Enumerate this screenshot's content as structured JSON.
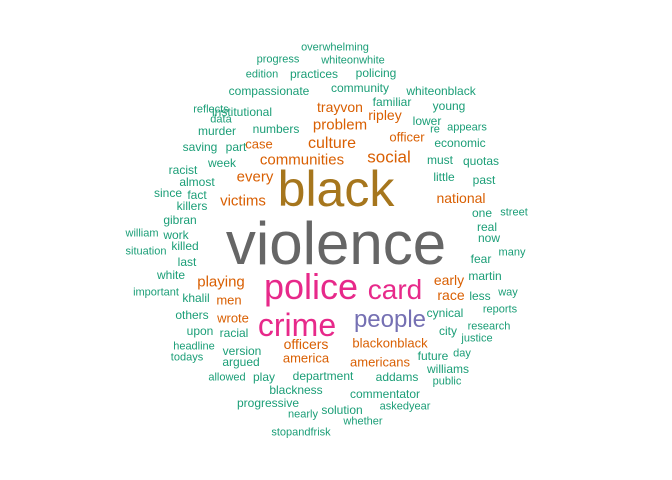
{
  "palette": {
    "teal": "#1b9e77",
    "orange": "#d95f02",
    "purple": "#7570b3",
    "magenta": "#e7298a",
    "gold": "#a6761d",
    "gray": "#666666"
  },
  "words": [
    {
      "text": "violence",
      "color": "gray"
    },
    {
      "text": "black",
      "color": "gold"
    },
    {
      "text": "police",
      "color": "magenta"
    },
    {
      "text": "crime",
      "color": "magenta"
    },
    {
      "text": "card",
      "color": "magenta"
    },
    {
      "text": "people",
      "color": "purple"
    },
    {
      "text": "social",
      "color": "orange"
    },
    {
      "text": "culture",
      "color": "orange"
    },
    {
      "text": "communities",
      "color": "orange"
    },
    {
      "text": "victims",
      "color": "orange"
    },
    {
      "text": "every",
      "color": "orange"
    },
    {
      "text": "problem",
      "color": "orange"
    },
    {
      "text": "playing",
      "color": "orange"
    },
    {
      "text": "officers",
      "color": "orange"
    },
    {
      "text": "trayvon",
      "color": "orange"
    },
    {
      "text": "ripley",
      "color": "orange"
    },
    {
      "text": "case",
      "color": "orange"
    },
    {
      "text": "officer",
      "color": "orange"
    },
    {
      "text": "national",
      "color": "orange"
    },
    {
      "text": "early",
      "color": "orange"
    },
    {
      "text": "race",
      "color": "orange"
    },
    {
      "text": "men",
      "color": "orange"
    },
    {
      "text": "wrote",
      "color": "orange"
    },
    {
      "text": "america",
      "color": "orange"
    },
    {
      "text": "blackonblack",
      "color": "orange"
    },
    {
      "text": "americans",
      "color": "orange"
    },
    {
      "text": "overwhelming",
      "color": "teal"
    },
    {
      "text": "progress",
      "color": "teal"
    },
    {
      "text": "whiteonwhite",
      "color": "teal"
    },
    {
      "text": "edition",
      "color": "teal"
    },
    {
      "text": "practices",
      "color": "teal"
    },
    {
      "text": "policing",
      "color": "teal"
    },
    {
      "text": "compassionate",
      "color": "teal"
    },
    {
      "text": "community",
      "color": "teal"
    },
    {
      "text": "whiteonblack",
      "color": "teal"
    },
    {
      "text": "reflects",
      "color": "teal"
    },
    {
      "text": "institutional",
      "color": "teal"
    },
    {
      "text": "familiar",
      "color": "teal"
    },
    {
      "text": "young",
      "color": "teal"
    },
    {
      "text": "data",
      "color": "teal"
    },
    {
      "text": "lower",
      "color": "teal"
    },
    {
      "text": "re",
      "color": "teal"
    },
    {
      "text": "appears",
      "color": "teal"
    },
    {
      "text": "murder",
      "color": "teal"
    },
    {
      "text": "numbers",
      "color": "teal"
    },
    {
      "text": "economic",
      "color": "teal"
    },
    {
      "text": "saving",
      "color": "teal"
    },
    {
      "text": "part",
      "color": "teal"
    },
    {
      "text": "must",
      "color": "teal"
    },
    {
      "text": "quotas",
      "color": "teal"
    },
    {
      "text": "week",
      "color": "teal"
    },
    {
      "text": "racist",
      "color": "teal"
    },
    {
      "text": "almost",
      "color": "teal"
    },
    {
      "text": "little",
      "color": "teal"
    },
    {
      "text": "past",
      "color": "teal"
    },
    {
      "text": "since",
      "color": "teal"
    },
    {
      "text": "fact",
      "color": "teal"
    },
    {
      "text": "killers",
      "color": "teal"
    },
    {
      "text": "one",
      "color": "teal"
    },
    {
      "text": "street",
      "color": "teal"
    },
    {
      "text": "gibran",
      "color": "teal"
    },
    {
      "text": "real",
      "color": "teal"
    },
    {
      "text": "william",
      "color": "teal"
    },
    {
      "text": "work",
      "color": "teal"
    },
    {
      "text": "now",
      "color": "teal"
    },
    {
      "text": "situation",
      "color": "teal"
    },
    {
      "text": "killed",
      "color": "teal"
    },
    {
      "text": "many",
      "color": "teal"
    },
    {
      "text": "last",
      "color": "teal"
    },
    {
      "text": "fear",
      "color": "teal"
    },
    {
      "text": "white",
      "color": "teal"
    },
    {
      "text": "martin",
      "color": "teal"
    },
    {
      "text": "important",
      "color": "teal"
    },
    {
      "text": "khalil",
      "color": "teal"
    },
    {
      "text": "less",
      "color": "teal"
    },
    {
      "text": "way",
      "color": "teal"
    },
    {
      "text": "reports",
      "color": "teal"
    },
    {
      "text": "others",
      "color": "teal"
    },
    {
      "text": "cynical",
      "color": "teal"
    },
    {
      "text": "upon",
      "color": "teal"
    },
    {
      "text": "racial",
      "color": "teal"
    },
    {
      "text": "city",
      "color": "teal"
    },
    {
      "text": "research",
      "color": "teal"
    },
    {
      "text": "headline",
      "color": "teal"
    },
    {
      "text": "argued",
      "color": "teal"
    },
    {
      "text": "justice",
      "color": "teal"
    },
    {
      "text": "version",
      "color": "teal"
    },
    {
      "text": "todays",
      "color": "teal"
    },
    {
      "text": "future",
      "color": "teal"
    },
    {
      "text": "day",
      "color": "teal"
    },
    {
      "text": "williams",
      "color": "teal"
    },
    {
      "text": "allowed",
      "color": "teal"
    },
    {
      "text": "play",
      "color": "teal"
    },
    {
      "text": "department",
      "color": "teal"
    },
    {
      "text": "addams",
      "color": "teal"
    },
    {
      "text": "public",
      "color": "teal"
    },
    {
      "text": "blackness",
      "color": "teal"
    },
    {
      "text": "commentator",
      "color": "teal"
    },
    {
      "text": "progressive",
      "color": "teal"
    },
    {
      "text": "solution",
      "color": "teal"
    },
    {
      "text": "askedyear",
      "color": "teal"
    },
    {
      "text": "nearly",
      "color": "teal"
    },
    {
      "text": "whether",
      "color": "teal"
    },
    {
      "text": "stopandfrisk",
      "color": "teal"
    }
  ]
}
